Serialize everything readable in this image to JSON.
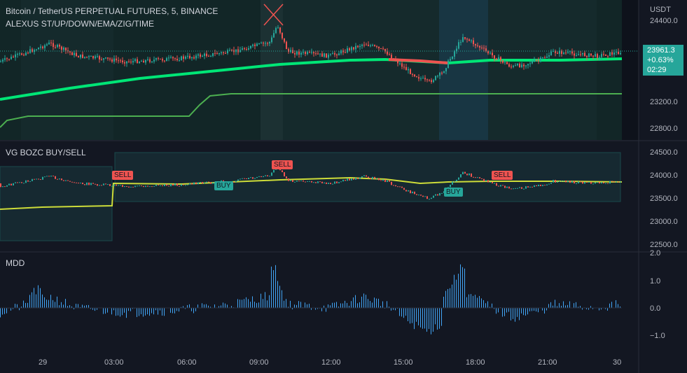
{
  "header": {
    "symbol": "Bitcoin / TetherUS PERPETUAL FUTURES, 5, BINANCE",
    "indicator": "ALEXUS ST/UP/DOWN/EMA/ZIG/TIME",
    "currency": "USDT"
  },
  "price_tag": {
    "price": "23961.3",
    "change": "+0.63%",
    "countdown": "02:29",
    "color": "#26a69a"
  },
  "panes": {
    "main": {
      "axis": [
        "24400.0",
        "23200.0",
        "22800.0"
      ]
    },
    "signals": {
      "title": "VG BOZC BUY/SELL",
      "axis": [
        "24500.0",
        "24000.0",
        "23500.0",
        "23000.0",
        "22500.0"
      ]
    },
    "mdd": {
      "title": "MDD",
      "axis": [
        "2.0",
        "1.0",
        "0.0",
        "−1.0"
      ]
    }
  },
  "signals": {
    "main_sell": "SELL",
    "sells": [
      "SELL",
      "SELL",
      "SELL"
    ],
    "buys": [
      "BUY",
      "BUY"
    ]
  },
  "time_axis": [
    "29",
    "03:00",
    "06:00",
    "09:00",
    "12:00",
    "15:00",
    "18:00",
    "21:00",
    "30"
  ],
  "colors": {
    "up": "#26a69a",
    "down": "#ef5350",
    "ema": "#00e676",
    "signal_line": "#cddc39",
    "histogram": "#42a5f5",
    "background": "#131722"
  }
}
